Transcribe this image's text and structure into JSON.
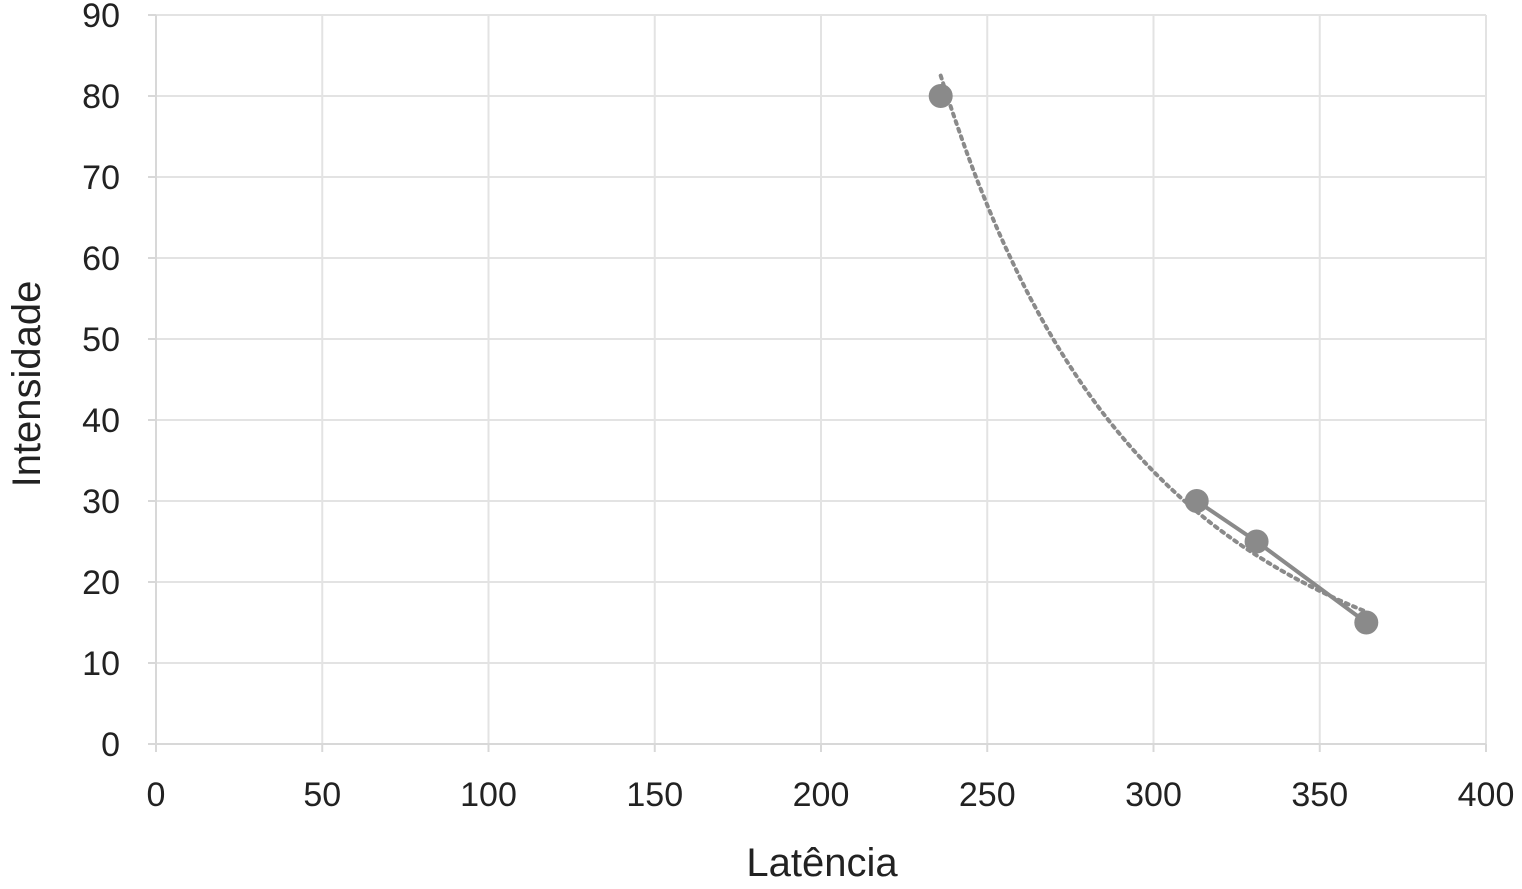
{
  "chart_data": {
    "type": "scatter",
    "title": "",
    "xlabel": "Latência",
    "ylabel": "Intensidade",
    "xlim": [
      0,
      400
    ],
    "ylim": [
      0,
      90
    ],
    "x_ticks": [
      0,
      50,
      100,
      150,
      200,
      250,
      300,
      350,
      400
    ],
    "y_ticks": [
      0,
      10,
      20,
      30,
      40,
      50,
      60,
      70,
      80,
      90
    ],
    "grid": true,
    "legend": "none",
    "series": [
      {
        "points": [
          {
            "x": 236,
            "y": 80
          },
          {
            "x": 313,
            "y": 30
          },
          {
            "x": 331,
            "y": 25
          },
          {
            "x": 364,
            "y": 15
          }
        ],
        "color": "#8a8a8a",
        "connect_line": {
          "from_index": 1,
          "style": "solid"
        },
        "trendline": {
          "style": "dotted",
          "color": "#8a8a8a"
        }
      }
    ]
  }
}
